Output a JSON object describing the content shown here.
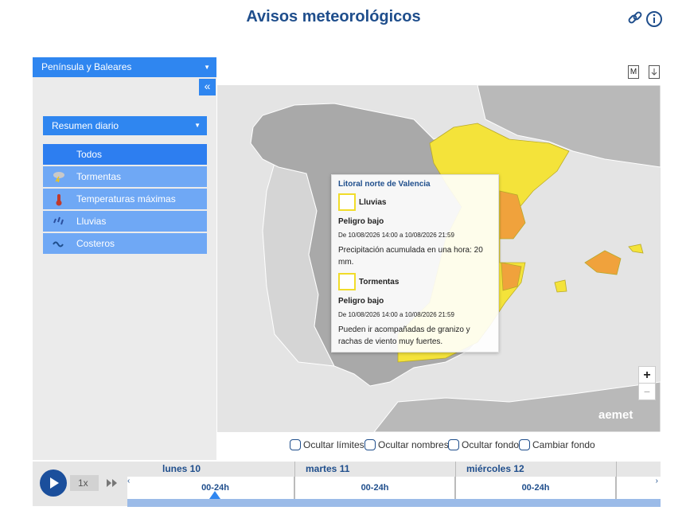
{
  "header": {
    "title": "Avisos meteorológicos"
  },
  "sidebar": {
    "region": "Península y Baleares",
    "mode": "Resumen diario",
    "phenomena": [
      "Todos",
      "Tormentas",
      "Temperaturas máximas",
      "Lluvias",
      "Costeros"
    ]
  },
  "map": {
    "tools": [
      "M"
    ],
    "zoom": [
      "+",
      "−"
    ],
    "brand": "aemet",
    "popup": {
      "zone": "Litoral norte de Valencia",
      "warnings": [
        {
          "phenomenon": "Lluvias",
          "level": "Peligro bajo",
          "period": "De 10/08/2026 14:00 a 10/08/2026 21:59",
          "description": "Precipitación acumulada en una hora: 20 mm."
        },
        {
          "phenomenon": "Tormentas",
          "level": "Peligro bajo",
          "period": "De 10/08/2026 14:00 a 10/08/2026 21:59",
          "description": "Pueden ir acompañadas de granizo y rachas de viento muy fuertes."
        }
      ]
    }
  },
  "options": [
    "Ocultar límites",
    "Ocultar nombres",
    "Ocultar fondo",
    "Cambiar fondo"
  ],
  "player": {
    "speed": "1x"
  },
  "timeline": {
    "days": [
      {
        "label": "lunes 10",
        "slot": "00-24h"
      },
      {
        "label": "martes 11",
        "slot": "00-24h"
      },
      {
        "label": "miércoles 12",
        "slot": "00-24h"
      }
    ]
  }
}
